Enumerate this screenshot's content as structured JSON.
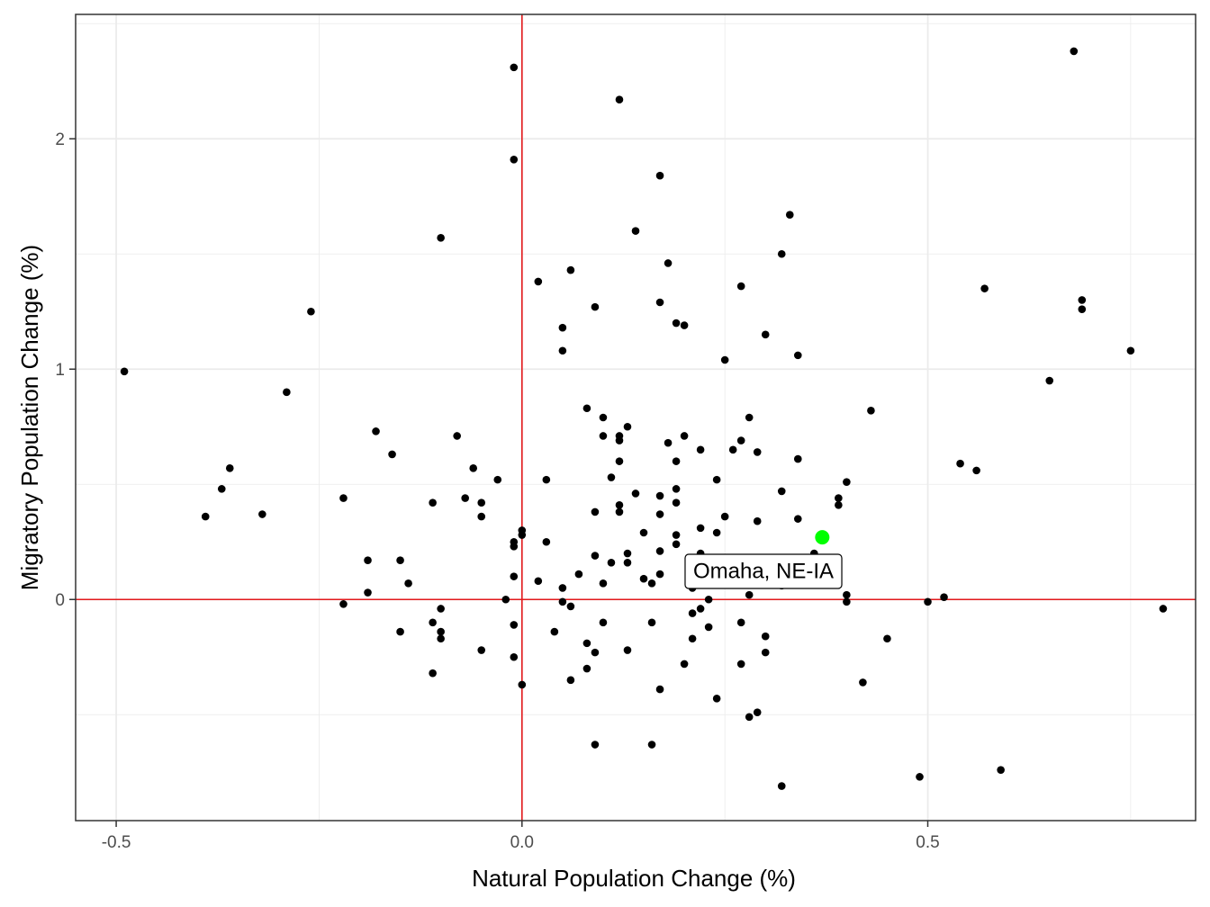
{
  "chart_data": {
    "type": "scatter",
    "xlabel": "Natural Population Change (%)",
    "ylabel": "Migratory Population Change (%)",
    "xlim": [
      -0.55,
      0.83
    ],
    "ylim": [
      -0.96,
      2.54
    ],
    "x_ticks": [
      -0.5,
      0.0,
      0.5
    ],
    "x_tick_labels": [
      "-0.5",
      "0.0",
      "0.5"
    ],
    "y_ticks": [
      0,
      1,
      2
    ],
    "y_tick_labels": [
      "0",
      "1",
      "2"
    ],
    "grid": true,
    "reference_lines": [
      {
        "orientation": "vertical",
        "value": 0,
        "color": "#e31a1c"
      },
      {
        "orientation": "horizontal",
        "value": 0,
        "color": "#e31a1c"
      }
    ],
    "highlight": {
      "label": "Omaha, NE-IA",
      "x": 0.37,
      "y": 0.27,
      "color": "#00ff00"
    },
    "points": [
      [
        -0.49,
        0.99
      ],
      [
        -0.39,
        0.36
      ],
      [
        -0.37,
        0.48
      ],
      [
        -0.36,
        0.57
      ],
      [
        -0.32,
        0.37
      ],
      [
        -0.29,
        0.9
      ],
      [
        -0.26,
        1.25
      ],
      [
        -0.22,
        0.44
      ],
      [
        -0.22,
        -0.02
      ],
      [
        -0.19,
        0.17
      ],
      [
        -0.19,
        0.03
      ],
      [
        -0.18,
        0.73
      ],
      [
        -0.16,
        0.63
      ],
      [
        -0.15,
        0.17
      ],
      [
        -0.15,
        -0.14
      ],
      [
        -0.14,
        0.07
      ],
      [
        -0.11,
        0.42
      ],
      [
        -0.11,
        -0.1
      ],
      [
        -0.11,
        -0.32
      ],
      [
        -0.1,
        1.57
      ],
      [
        -0.1,
        -0.04
      ],
      [
        -0.1,
        -0.14
      ],
      [
        -0.1,
        -0.17
      ],
      [
        -0.08,
        0.71
      ],
      [
        -0.07,
        0.44
      ],
      [
        -0.06,
        0.57
      ],
      [
        -0.05,
        0.42
      ],
      [
        -0.05,
        0.36
      ],
      [
        -0.05,
        -0.22
      ],
      [
        -0.03,
        0.52
      ],
      [
        -0.02,
        0.0
      ],
      [
        -0.01,
        2.31
      ],
      [
        -0.01,
        1.91
      ],
      [
        -0.01,
        0.25
      ],
      [
        -0.01,
        0.23
      ],
      [
        -0.01,
        0.1
      ],
      [
        -0.01,
        -0.11
      ],
      [
        -0.01,
        -0.25
      ],
      [
        0.0,
        0.3
      ],
      [
        0.0,
        0.28
      ],
      [
        0.0,
        -0.37
      ],
      [
        0.02,
        1.38
      ],
      [
        0.02,
        0.08
      ],
      [
        0.03,
        0.52
      ],
      [
        0.03,
        0.25
      ],
      [
        0.04,
        -0.14
      ],
      [
        0.05,
        1.18
      ],
      [
        0.05,
        1.08
      ],
      [
        0.05,
        0.05
      ],
      [
        0.05,
        -0.01
      ],
      [
        0.06,
        1.43
      ],
      [
        0.06,
        -0.03
      ],
      [
        0.06,
        -0.35
      ],
      [
        0.07,
        0.11
      ],
      [
        0.08,
        0.83
      ],
      [
        0.08,
        -0.19
      ],
      [
        0.08,
        -0.3
      ],
      [
        0.09,
        1.27
      ],
      [
        0.09,
        0.38
      ],
      [
        0.09,
        0.19
      ],
      [
        0.09,
        -0.23
      ],
      [
        0.09,
        -0.63
      ],
      [
        0.1,
        0.79
      ],
      [
        0.1,
        0.71
      ],
      [
        0.1,
        0.07
      ],
      [
        0.1,
        -0.1
      ],
      [
        0.11,
        0.53
      ],
      [
        0.11,
        0.16
      ],
      [
        0.12,
        2.17
      ],
      [
        0.12,
        0.71
      ],
      [
        0.12,
        0.69
      ],
      [
        0.12,
        0.6
      ],
      [
        0.12,
        0.41
      ],
      [
        0.12,
        0.38
      ],
      [
        0.13,
        0.75
      ],
      [
        0.13,
        0.2
      ],
      [
        0.13,
        0.16
      ],
      [
        0.13,
        -0.22
      ],
      [
        0.14,
        1.6
      ],
      [
        0.14,
        0.46
      ],
      [
        0.15,
        0.29
      ],
      [
        0.15,
        0.09
      ],
      [
        0.16,
        0.07
      ],
      [
        0.16,
        -0.1
      ],
      [
        0.16,
        -0.63
      ],
      [
        0.17,
        1.84
      ],
      [
        0.17,
        1.29
      ],
      [
        0.17,
        0.45
      ],
      [
        0.17,
        0.37
      ],
      [
        0.17,
        0.21
      ],
      [
        0.17,
        0.11
      ],
      [
        0.17,
        -0.39
      ],
      [
        0.18,
        1.46
      ],
      [
        0.18,
        0.68
      ],
      [
        0.19,
        1.2
      ],
      [
        0.19,
        0.6
      ],
      [
        0.19,
        0.48
      ],
      [
        0.19,
        0.42
      ],
      [
        0.19,
        0.28
      ],
      [
        0.19,
        0.24
      ],
      [
        0.2,
        1.19
      ],
      [
        0.2,
        0.71
      ],
      [
        0.2,
        -0.28
      ],
      [
        0.21,
        0.05
      ],
      [
        0.21,
        -0.06
      ],
      [
        0.21,
        -0.17
      ],
      [
        0.22,
        0.65
      ],
      [
        0.22,
        0.31
      ],
      [
        0.22,
        0.2
      ],
      [
        0.22,
        -0.04
      ],
      [
        0.23,
        0.0
      ],
      [
        0.23,
        -0.12
      ],
      [
        0.24,
        0.52
      ],
      [
        0.24,
        0.29
      ],
      [
        0.24,
        -0.43
      ],
      [
        0.25,
        1.04
      ],
      [
        0.25,
        0.36
      ],
      [
        0.26,
        0.65
      ],
      [
        0.27,
        1.36
      ],
      [
        0.27,
        0.69
      ],
      [
        0.27,
        -0.1
      ],
      [
        0.27,
        -0.28
      ],
      [
        0.28,
        0.79
      ],
      [
        0.28,
        0.02
      ],
      [
        0.28,
        -0.51
      ],
      [
        0.29,
        0.64
      ],
      [
        0.29,
        0.34
      ],
      [
        0.29,
        -0.49
      ],
      [
        0.3,
        1.15
      ],
      [
        0.3,
        -0.16
      ],
      [
        0.3,
        -0.23
      ],
      [
        0.32,
        1.5
      ],
      [
        0.32,
        0.47
      ],
      [
        0.32,
        0.06
      ],
      [
        0.32,
        -0.81
      ],
      [
        0.33,
        1.67
      ],
      [
        0.34,
        1.06
      ],
      [
        0.34,
        0.61
      ],
      [
        0.34,
        0.35
      ],
      [
        0.36,
        0.2
      ],
      [
        0.39,
        0.44
      ],
      [
        0.39,
        0.41
      ],
      [
        0.4,
        0.51
      ],
      [
        0.4,
        0.02
      ],
      [
        0.4,
        -0.01
      ],
      [
        0.42,
        -0.36
      ],
      [
        0.43,
        0.82
      ],
      [
        0.45,
        -0.17
      ],
      [
        0.49,
        -0.77
      ],
      [
        0.5,
        -0.01
      ],
      [
        0.52,
        0.01
      ],
      [
        0.54,
        0.59
      ],
      [
        0.56,
        0.56
      ],
      [
        0.57,
        1.35
      ],
      [
        0.59,
        -0.74
      ],
      [
        0.65,
        0.95
      ],
      [
        0.68,
        2.38
      ],
      [
        0.69,
        1.3
      ],
      [
        0.69,
        1.26
      ],
      [
        0.75,
        1.08
      ],
      [
        0.79,
        -0.04
      ]
    ]
  }
}
